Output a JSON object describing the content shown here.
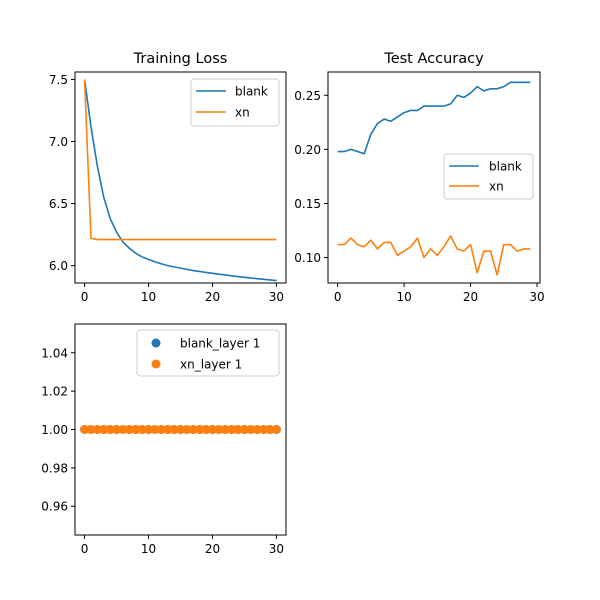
{
  "colors": {
    "blank": "#1f77b4",
    "xn": "#ff7f0e"
  },
  "chart_data": [
    {
      "type": "line",
      "title": "Training Loss",
      "xlim": [
        -1.5,
        31.5
      ],
      "ylim": [
        5.86,
        7.56
      ],
      "xticks": [
        0,
        10,
        20,
        30
      ],
      "yticks": [
        6.0,
        6.5,
        7.0,
        7.5
      ],
      "ytick_labels": [
        "6.0",
        "6.5",
        "7.0",
        "7.5"
      ],
      "legend_position": "top-right",
      "series": [
        {
          "name": "blank",
          "color": "#1f77b4",
          "x": [
            0,
            1,
            2,
            3,
            4,
            5,
            6,
            7,
            8,
            9,
            10,
            11,
            12,
            13,
            14,
            15,
            16,
            17,
            18,
            19,
            20,
            21,
            22,
            23,
            24,
            25,
            26,
            27,
            28,
            29,
            30
          ],
          "y": [
            7.5,
            7.12,
            6.8,
            6.55,
            6.38,
            6.27,
            6.19,
            6.14,
            6.1,
            6.07,
            6.05,
            6.03,
            6.015,
            6.0,
            5.99,
            5.98,
            5.97,
            5.96,
            5.953,
            5.945,
            5.938,
            5.931,
            5.925,
            5.918,
            5.912,
            5.906,
            5.9,
            5.895,
            5.89,
            5.885,
            5.88
          ]
        },
        {
          "name": "xn",
          "color": "#ff7f0e",
          "x": [
            0,
            1,
            2,
            3,
            4,
            5,
            6,
            7,
            8,
            9,
            10,
            11,
            12,
            13,
            14,
            15,
            16,
            17,
            18,
            19,
            20,
            21,
            22,
            23,
            24,
            25,
            26,
            27,
            28,
            29,
            30
          ],
          "y": [
            7.5,
            6.22,
            6.21,
            6.21,
            6.21,
            6.21,
            6.21,
            6.21,
            6.21,
            6.21,
            6.21,
            6.21,
            6.21,
            6.21,
            6.21,
            6.21,
            6.21,
            6.21,
            6.21,
            6.21,
            6.21,
            6.21,
            6.21,
            6.21,
            6.21,
            6.21,
            6.21,
            6.21,
            6.21,
            6.21,
            6.21
          ]
        }
      ]
    },
    {
      "type": "line",
      "title": "Test Accuracy",
      "xlim": [
        -1.45,
        30.45
      ],
      "ylim": [
        0.0765,
        0.2715
      ],
      "xticks": [
        0,
        10,
        20,
        30
      ],
      "yticks": [
        0.1,
        0.15,
        0.2,
        0.25
      ],
      "ytick_labels": [
        "0.10",
        "0.15",
        "0.20",
        "0.25"
      ],
      "legend_position": "center-right",
      "series": [
        {
          "name": "blank",
          "color": "#1f77b4",
          "x": [
            0,
            1,
            2,
            3,
            4,
            5,
            6,
            7,
            8,
            9,
            10,
            11,
            12,
            13,
            14,
            15,
            16,
            17,
            18,
            19,
            20,
            21,
            22,
            23,
            24,
            25,
            26,
            27,
            28,
            29
          ],
          "y": [
            0.198,
            0.198,
            0.2,
            0.198,
            0.196,
            0.214,
            0.224,
            0.228,
            0.226,
            0.23,
            0.234,
            0.236,
            0.236,
            0.24,
            0.24,
            0.24,
            0.24,
            0.242,
            0.25,
            0.248,
            0.252,
            0.258,
            0.254,
            0.256,
            0.256,
            0.258,
            0.262,
            0.262,
            0.262,
            0.262
          ]
        },
        {
          "name": "xn",
          "color": "#ff7f0e",
          "x": [
            0,
            1,
            2,
            3,
            4,
            5,
            6,
            7,
            8,
            9,
            10,
            11,
            12,
            13,
            14,
            15,
            16,
            17,
            18,
            19,
            20,
            21,
            22,
            23,
            24,
            25,
            26,
            27,
            28,
            29
          ],
          "y": [
            0.112,
            0.112,
            0.118,
            0.112,
            0.11,
            0.116,
            0.108,
            0.114,
            0.114,
            0.102,
            0.106,
            0.11,
            0.118,
            0.1,
            0.108,
            0.102,
            0.11,
            0.12,
            0.108,
            0.106,
            0.112,
            0.086,
            0.106,
            0.106,
            0.084,
            0.112,
            0.112,
            0.106,
            0.108,
            0.108
          ]
        }
      ]
    },
    {
      "type": "scatter",
      "title": "",
      "xlim": [
        -1.5,
        31.5
      ],
      "ylim": [
        0.945,
        1.055
      ],
      "xticks": [
        0,
        10,
        20,
        30
      ],
      "yticks": [
        0.96,
        0.98,
        1.0,
        1.02,
        1.04
      ],
      "ytick_labels": [
        "0.96",
        "0.98",
        "1.00",
        "1.02",
        "1.04"
      ],
      "legend_position": "top-right",
      "series": [
        {
          "name": "blank_layer 1",
          "color": "#1f77b4",
          "x": [
            0,
            1,
            2,
            3,
            4,
            5,
            6,
            7,
            8,
            9,
            10,
            11,
            12,
            13,
            14,
            15,
            16,
            17,
            18,
            19,
            20,
            21,
            22,
            23,
            24,
            25,
            26,
            27,
            28,
            29,
            30
          ],
          "y": [
            1,
            1,
            1,
            1,
            1,
            1,
            1,
            1,
            1,
            1,
            1,
            1,
            1,
            1,
            1,
            1,
            1,
            1,
            1,
            1,
            1,
            1,
            1,
            1,
            1,
            1,
            1,
            1,
            1,
            1,
            1
          ]
        },
        {
          "name": "xn_layer 1",
          "color": "#ff7f0e",
          "x": [
            0,
            1,
            2,
            3,
            4,
            5,
            6,
            7,
            8,
            9,
            10,
            11,
            12,
            13,
            14,
            15,
            16,
            17,
            18,
            19,
            20,
            21,
            22,
            23,
            24,
            25,
            26,
            27,
            28,
            29,
            30
          ],
          "y": [
            1,
            1,
            1,
            1,
            1,
            1,
            1,
            1,
            1,
            1,
            1,
            1,
            1,
            1,
            1,
            1,
            1,
            1,
            1,
            1,
            1,
            1,
            1,
            1,
            1,
            1,
            1,
            1,
            1,
            1,
            1
          ]
        }
      ]
    }
  ]
}
